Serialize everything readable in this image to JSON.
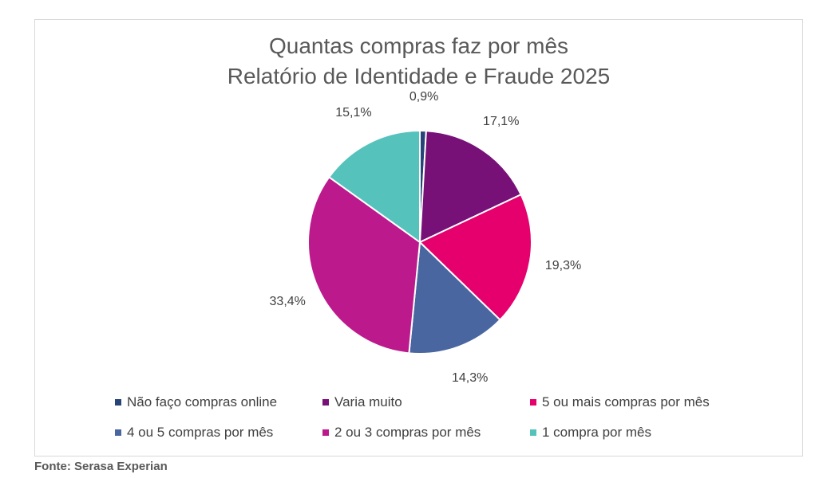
{
  "chart_data": {
    "type": "pie",
    "title": "Quantas compras faz por mês",
    "subtitle": "Relatório de Identidade e Fraude 2025",
    "legend_position": "bottom",
    "slices": [
      {
        "name": "Não faço compras online",
        "value": 0.9,
        "label": "0,9%",
        "color": "#264478"
      },
      {
        "name": "Varia muito",
        "value": 17.1,
        "label": "17,1%",
        "color": "#771177"
      },
      {
        "name": "5 ou mais compras por mês",
        "value": 19.3,
        "label": "19,3%",
        "color": "#E5006D"
      },
      {
        "name": "4 ou 5 compras por mês",
        "value": 14.3,
        "label": "14,3%",
        "color": "#4A66A0"
      },
      {
        "name": "2 ou 3 compras por mês",
        "value": 33.4,
        "label": "33,4%",
        "color": "#BC1A8C"
      },
      {
        "name": "1 compra por mês",
        "value": 15.1,
        "label": "15,1%",
        "color": "#55C2BC"
      }
    ]
  },
  "source": "Fonte: Serasa Experian"
}
